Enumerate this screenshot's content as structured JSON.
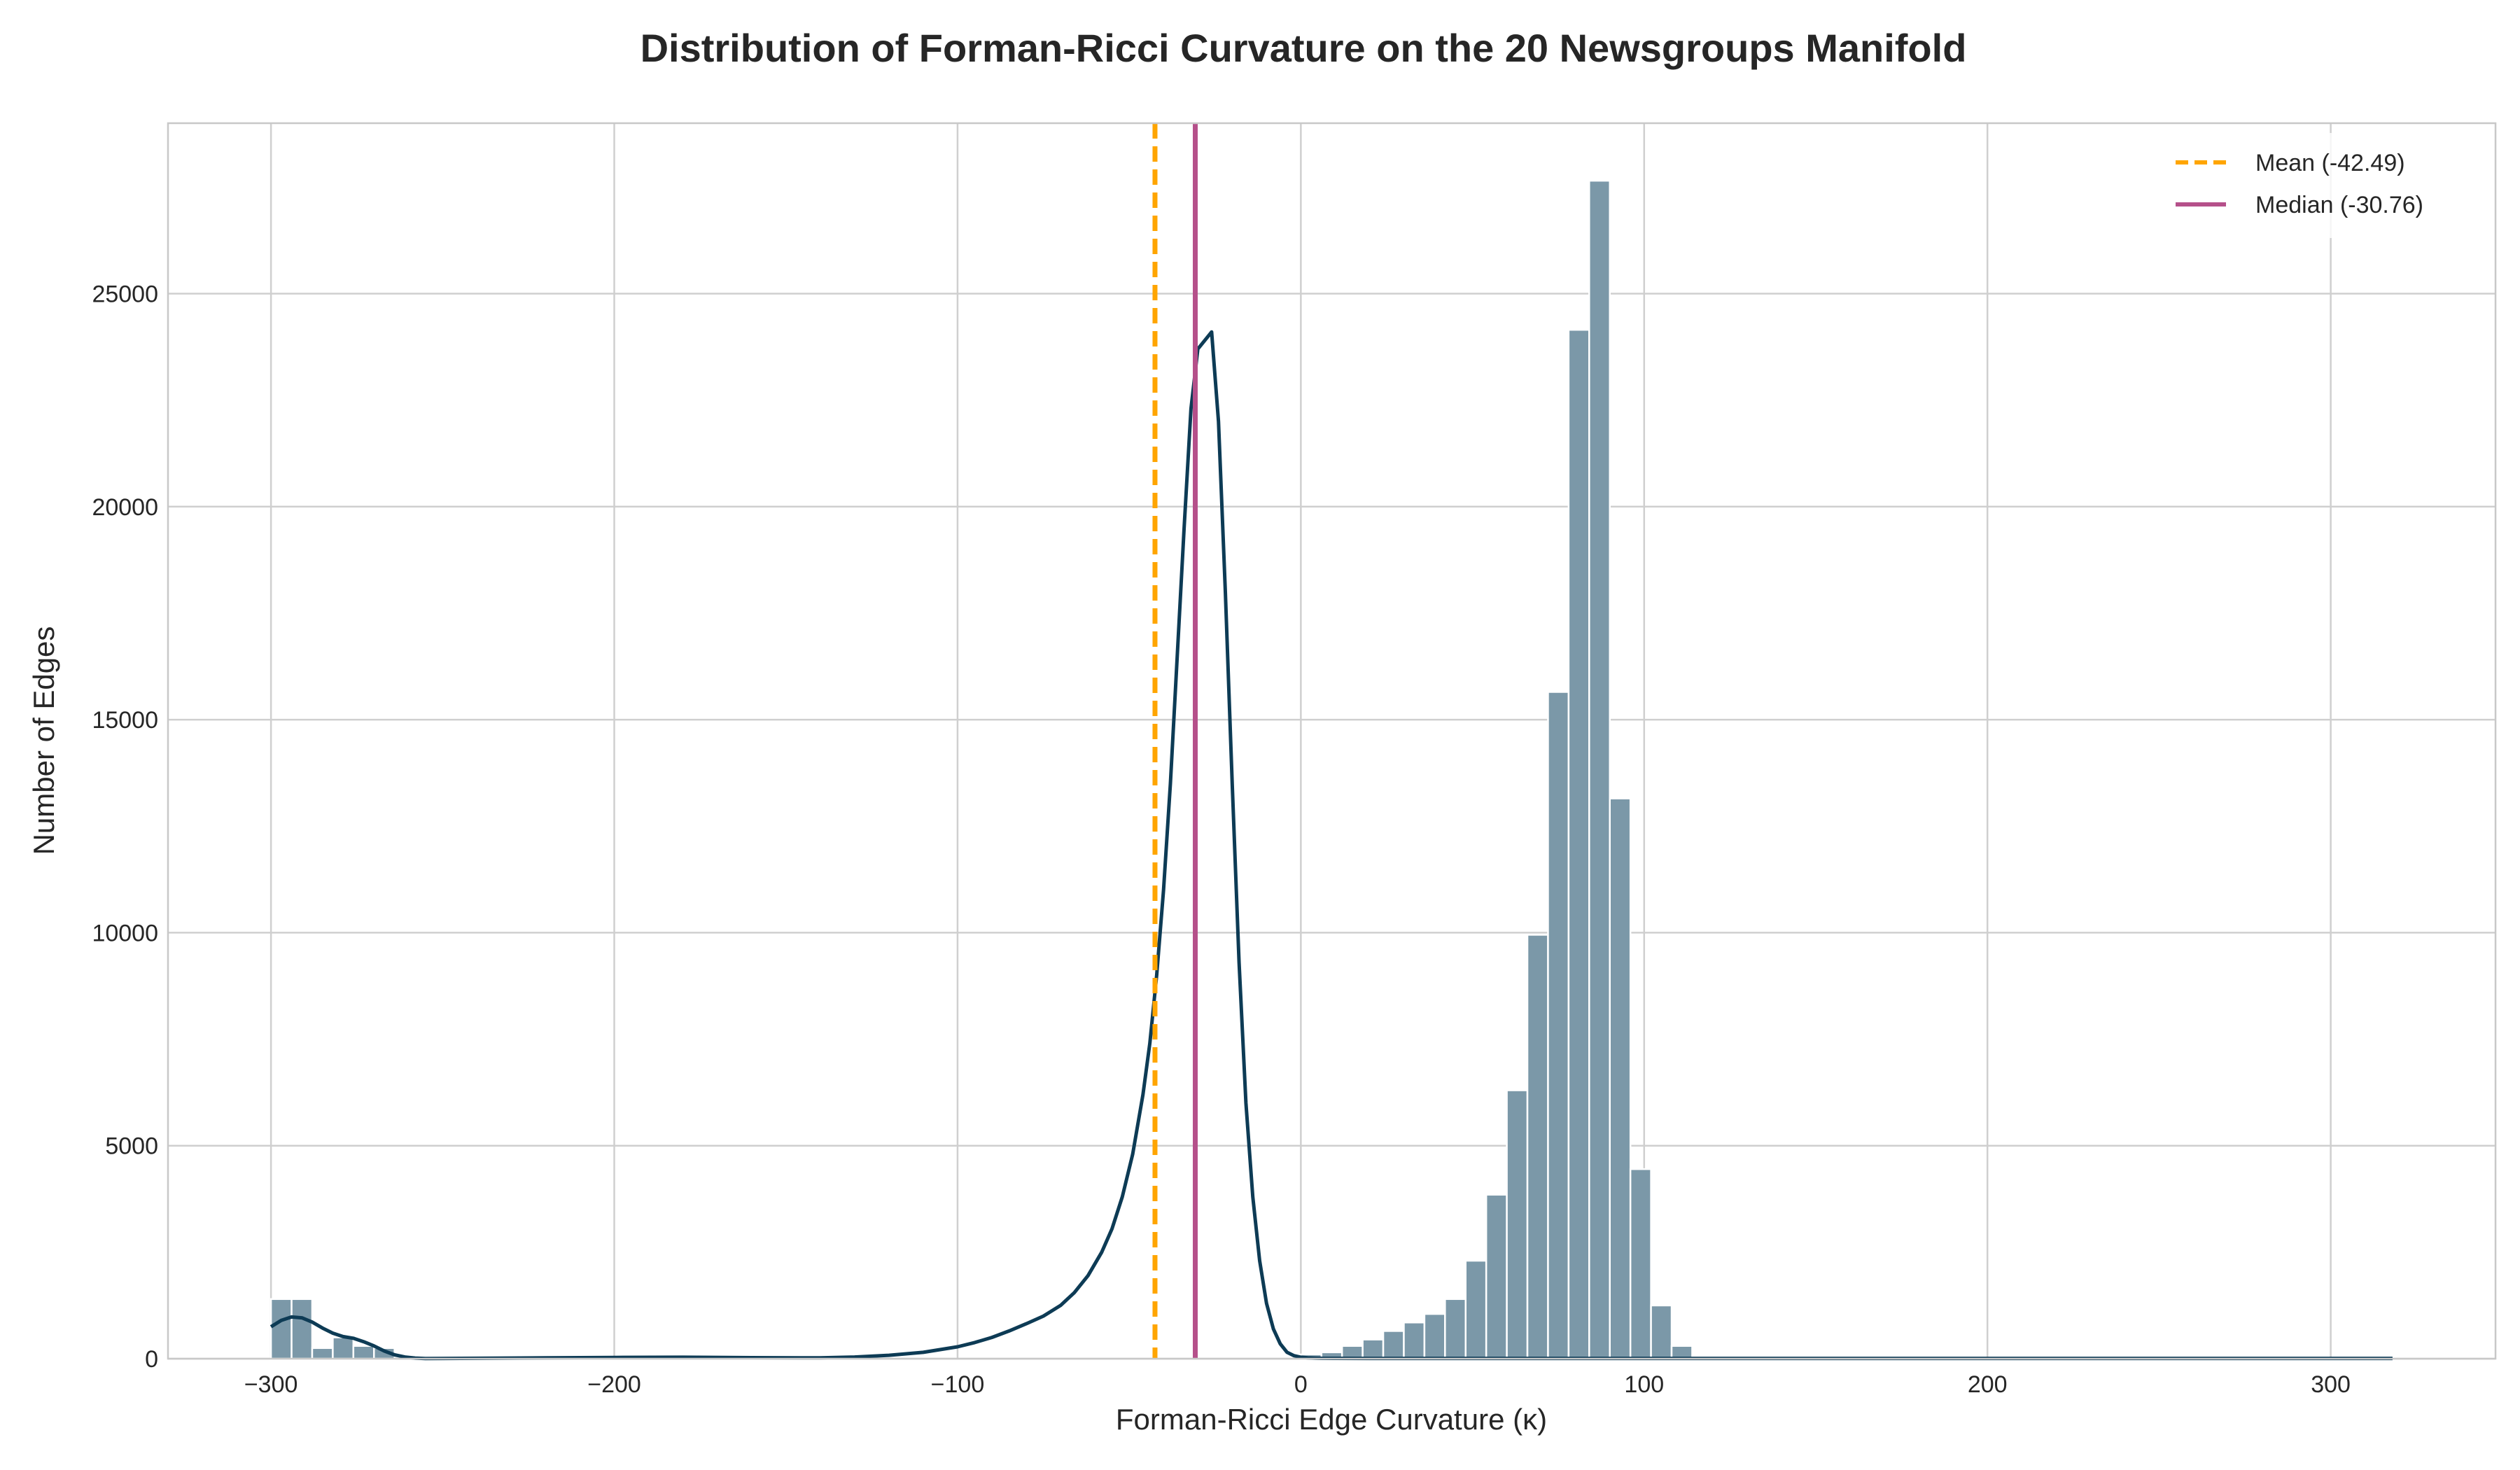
{
  "chart_data": {
    "type": "histogram",
    "title": "Distribution of Forman-Ricci Curvature on the 20 Newsgroups Manifold",
    "xlabel": "Forman-Ricci Edge Curvature (κ)",
    "ylabel": "Number of Edges",
    "xlim": [
      -330,
      348
    ],
    "ylim": [
      0,
      29000
    ],
    "xticks": [
      -300,
      -200,
      -100,
      0,
      100,
      200,
      300
    ],
    "xtick_labels": [
      "−300",
      "−200",
      "−100",
      "0",
      "100",
      "200",
      "300"
    ],
    "yticks": [
      0,
      5000,
      10000,
      15000,
      20000,
      25000
    ],
    "ytick_labels": [
      "0",
      "5000",
      "10000",
      "15000",
      "20000",
      "25000"
    ],
    "grid": true,
    "bins": {
      "start": -300,
      "width": 6,
      "counts": [
        1400,
        1400,
        250,
        500,
        300,
        250,
        0,
        0,
        0,
        0,
        0,
        0,
        0,
        0,
        0,
        0,
        0,
        0,
        0,
        0,
        0,
        0,
        0,
        0,
        0,
        0,
        0,
        0,
        0,
        0,
        0,
        0,
        0,
        0,
        0,
        0,
        0,
        0,
        0,
        0,
        0,
        0,
        0,
        0,
        0,
        0,
        0,
        0,
        0,
        0,
        100,
        150,
        300,
        450,
        650,
        850,
        1050,
        1400,
        2300,
        3850,
        6300,
        9950,
        15650,
        24150,
        27650,
        13150,
        4450,
        1250,
        300
      ]
    },
    "bar_color": "#7b98a8",
    "kde": {
      "color": "#0d3b55",
      "x": [
        -300,
        -297,
        -294,
        -291,
        -288,
        -285,
        -282,
        -279,
        -276,
        -273,
        -270,
        -267,
        -264,
        -261,
        -258,
        -255,
        -240,
        -220,
        -200,
        -180,
        -160,
        -140,
        -130,
        -120,
        -110,
        -100,
        -95,
        -90,
        -85,
        -80,
        -75,
        -70,
        -66,
        -62,
        -58,
        -55,
        -52,
        -49,
        -46,
        -44,
        -42,
        -40,
        -38,
        -36,
        -34,
        -32,
        -30,
        -28,
        -26,
        -24,
        -22,
        -20,
        -18,
        -16,
        -14,
        -12,
        -10,
        -8,
        -6,
        -4,
        -2,
        0,
        2,
        4,
        6,
        10,
        20,
        50,
        100,
        150,
        200,
        250,
        300,
        318
      ],
      "y": [
        750,
        900,
        980,
        960,
        860,
        720,
        600,
        520,
        480,
        400,
        300,
        180,
        90,
        40,
        15,
        5,
        10,
        20,
        30,
        35,
        25,
        20,
        40,
        80,
        150,
        280,
        380,
        500,
        650,
        820,
        1000,
        1250,
        1550,
        1950,
        2500,
        3050,
        3800,
        4800,
        6200,
        7400,
        9000,
        11000,
        13500,
        16500,
        19500,
        22300,
        23700,
        23900,
        24100,
        22000,
        18000,
        13500,
        9300,
        6000,
        3800,
        2300,
        1300,
        700,
        350,
        150,
        70,
        35,
        20,
        15,
        10,
        8,
        6,
        6,
        6,
        6,
        6,
        6,
        6,
        6
      ]
    },
    "vlines": [
      {
        "name": "Mean (-42.49)",
        "x": -42.49,
        "color": "#ffa500",
        "style": "dashed"
      },
      {
        "name": "Median (-30.76)",
        "x": -30.76,
        "color": "#b5508a",
        "style": "solid"
      }
    ],
    "legend_position": "top-right"
  }
}
